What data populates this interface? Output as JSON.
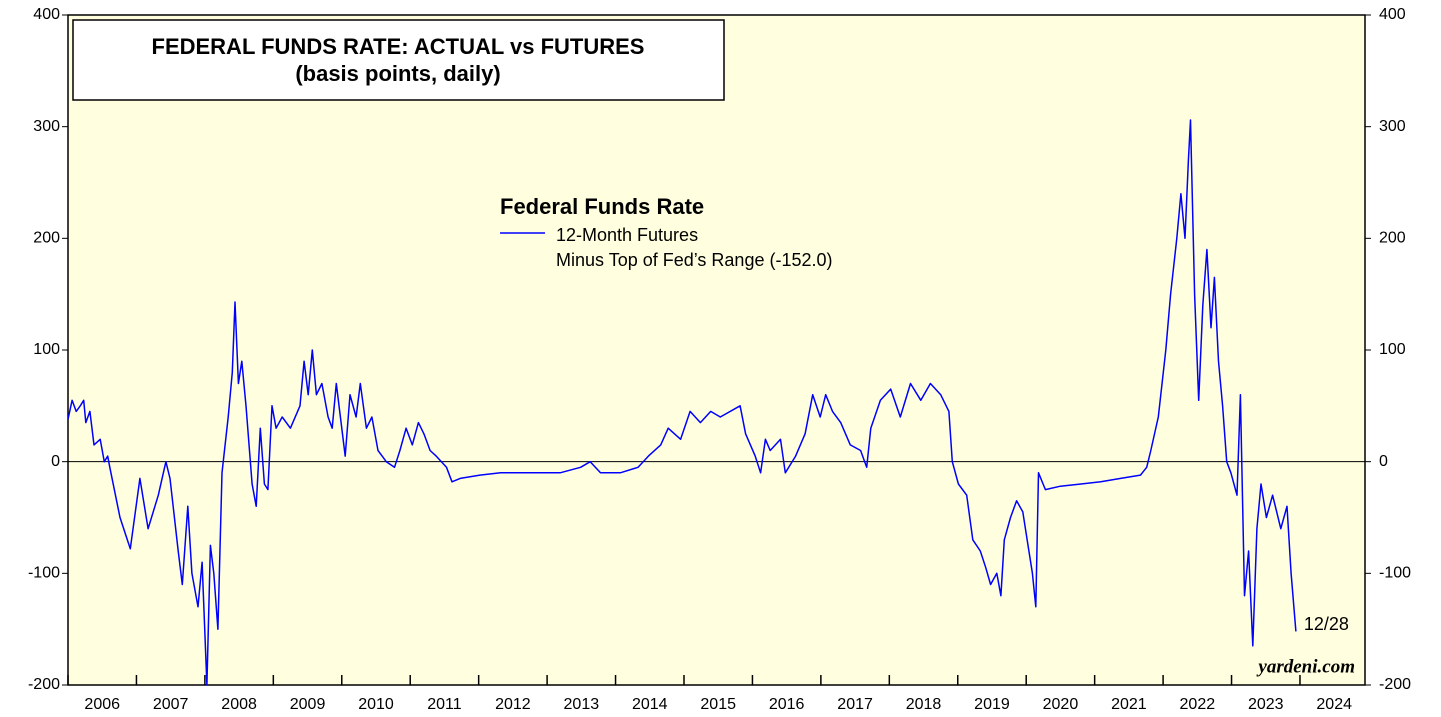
{
  "chart_data": {
    "type": "line",
    "title": "FEDERAL FUNDS RATE: ACTUAL vs FUTURES",
    "subtitle": "(basis points, daily)",
    "legend_title": "Federal Funds Rate",
    "series": [
      {
        "name": "12-Month Futures",
        "name_line2": "Minus Top of Fed’s Range (-152.0)",
        "color": "#0000ff",
        "x": [
          2006.0,
          2006.06,
          2006.12,
          2006.18,
          2006.23,
          2006.26,
          2006.32,
          2006.38,
          2006.47,
          2006.53,
          2006.58,
          2006.61,
          2006.76,
          2006.91,
          2007.05,
          2007.17,
          2007.32,
          2007.43,
          2007.49,
          2007.61,
          2007.67,
          2007.75,
          2007.81,
          2007.9,
          2007.96,
          2008.03,
          2008.08,
          2008.13,
          2008.19,
          2008.25,
          2008.34,
          2008.4,
          2008.44,
          2008.49,
          2008.54,
          2008.6,
          2008.69,
          2008.75,
          2008.81,
          2008.87,
          2008.92,
          2008.98,
          2009.04,
          2009.13,
          2009.25,
          2009.39,
          2009.45,
          2009.51,
          2009.57,
          2009.63,
          2009.71,
          2009.8,
          2009.86,
          2009.92,
          2009.98,
          2010.05,
          2010.12,
          2010.21,
          2010.27,
          2010.36,
          2010.44,
          2010.53,
          2010.65,
          2010.77,
          2010.85,
          2010.94,
          2011.03,
          2011.12,
          2011.2,
          2011.29,
          2011.38,
          2011.53,
          2011.61,
          2011.73,
          2012.02,
          2012.32,
          2012.75,
          2013.19,
          2013.49,
          2013.63,
          2013.78,
          2014.07,
          2014.33,
          2014.48,
          2014.66,
          2014.77,
          2014.95,
          2015.09,
          2015.24,
          2015.39,
          2015.53,
          2015.82,
          2015.9,
          2016.04,
          2016.12,
          2016.19,
          2016.26,
          2016.41,
          2016.48,
          2016.63,
          2016.77,
          2016.88,
          2016.99,
          2017.07,
          2017.17,
          2017.29,
          2017.43,
          2017.58,
          2017.67,
          2017.73,
          2017.87,
          2018.02,
          2018.16,
          2018.31,
          2018.46,
          2018.6,
          2018.75,
          2018.87,
          2018.92,
          2019.01,
          2019.13,
          2019.22,
          2019.33,
          2019.41,
          2019.48,
          2019.57,
          2019.63,
          2019.68,
          2019.77,
          2019.86,
          2019.95,
          2020.04,
          2020.09,
          2020.14,
          2020.18,
          2020.28,
          2020.5,
          2020.8,
          2021.09,
          2021.38,
          2021.67,
          2021.76,
          2021.82,
          2021.93,
          2022.04,
          2022.11,
          2022.2,
          2022.26,
          2022.32,
          2022.37,
          2022.4,
          2022.46,
          2022.52,
          2022.58,
          2022.64,
          2022.7,
          2022.75,
          2022.81,
          2022.87,
          2022.93,
          2022.99,
          2023.08,
          2023.13,
          2023.19,
          2023.25,
          2023.31,
          2023.37,
          2023.43,
          2023.51,
          2023.6,
          2023.72,
          2023.81,
          2023.87,
          2023.94
        ],
        "values": [
          38,
          55,
          45,
          50,
          55,
          35,
          45,
          15,
          20,
          0,
          5,
          -5,
          -50,
          -78,
          -15,
          -60,
          -30,
          0,
          -15,
          -80,
          -110,
          -40,
          -100,
          -130,
          -90,
          -200,
          -75,
          -100,
          -150,
          -10,
          40,
          80,
          143,
          70,
          90,
          50,
          -20,
          -40,
          30,
          -20,
          -25,
          50,
          30,
          40,
          30,
          50,
          90,
          60,
          100,
          60,
          70,
          40,
          30,
          70,
          40,
          5,
          60,
          40,
          70,
          30,
          40,
          10,
          0,
          -5,
          10,
          30,
          15,
          35,
          25,
          10,
          5,
          -5,
          -18,
          -15,
          -12,
          -10,
          -10,
          -10,
          -5,
          0,
          -10,
          -10,
          -5,
          5,
          15,
          30,
          20,
          45,
          35,
          45,
          40,
          50,
          25,
          5,
          -10,
          20,
          10,
          20,
          -10,
          5,
          25,
          60,
          40,
          60,
          45,
          35,
          15,
          10,
          -5,
          30,
          55,
          65,
          40,
          70,
          55,
          70,
          60,
          45,
          0,
          -20,
          -30,
          -70,
          -80,
          -95,
          -110,
          -100,
          -120,
          -70,
          -50,
          -35,
          -45,
          -80,
          -100,
          -130,
          -10,
          -25,
          -22,
          -20,
          -18,
          -15,
          -12,
          -5,
          10,
          40,
          100,
          150,
          200,
          240,
          200,
          270,
          306,
          150,
          55,
          140,
          190,
          120,
          165,
          90,
          50,
          0,
          -10,
          -30,
          60,
          -120,
          -80,
          -165,
          -60,
          -20,
          -50,
          -30,
          -60,
          -40,
          -100,
          -152
        ]
      }
    ],
    "end_label": "12/28",
    "reference_line": 0,
    "xlim": [
      2006,
      2024.95
    ],
    "xticks": [
      2006,
      2007,
      2008,
      2009,
      2010,
      2011,
      2012,
      2013,
      2014,
      2015,
      2016,
      2017,
      2018,
      2019,
      2020,
      2021,
      2022,
      2023,
      2024
    ],
    "ylim": [
      -200,
      400
    ],
    "yticks": [
      -200,
      -100,
      0,
      100,
      200,
      300,
      400
    ],
    "watermark": "yardeni.com"
  }
}
